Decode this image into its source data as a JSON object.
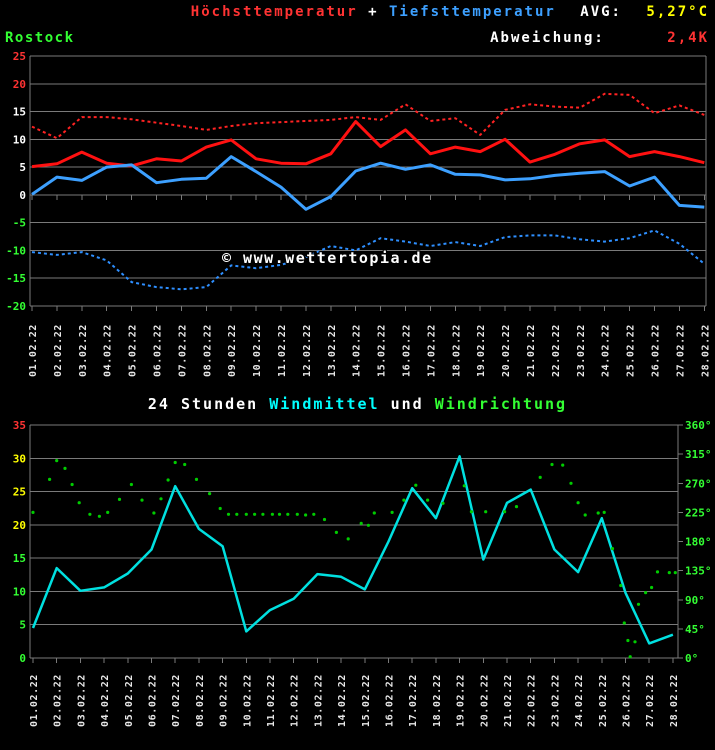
{
  "header": {
    "station": "Rostock",
    "title_max": "Höchsttemperatur",
    "title_plus": "+",
    "title_min": "Tiefsttemperatur",
    "avg_label": "AVG:",
    "avg_value": "5,27°C",
    "dev_label": "Abweichung:",
    "dev_value": "2,4K"
  },
  "watermark": "© www.wettertopia.de",
  "colors": {
    "background": "#000000",
    "red": "#ff2222",
    "blue_solid": "#3da0ff",
    "blue_dashed": "#2e8fff",
    "yellow": "#ffff00",
    "green": "#33ff33",
    "cyan_line": "#00e0e0",
    "cyan_label": "#00ffff",
    "white": "#ffffff",
    "grid": "#7a7a7a",
    "dot_green": "#00cc00",
    "date_label": "#e8e8e8"
  },
  "dates": [
    "01.02.22",
    "02.02.22",
    "03.02.22",
    "04.02.22",
    "05.02.22",
    "06.02.22",
    "07.02.22",
    "08.02.22",
    "09.02.22",
    "10.02.22",
    "11.02.22",
    "12.02.22",
    "13.02.22",
    "14.02.22",
    "15.02.22",
    "16.02.22",
    "17.02.22",
    "18.02.22",
    "19.02.22",
    "20.02.22",
    "21.02.22",
    "22.02.22",
    "23.02.22",
    "24.02.22",
    "25.02.22",
    "26.02.22",
    "27.02.22",
    "28.02.22"
  ],
  "chart_data": [
    {
      "type": "line",
      "title": "Höchsttemperatur + Tiefsttemperatur",
      "ylabel": "°C",
      "ylim": [
        -20,
        25
      ],
      "grid": true,
      "y_ticks": [
        {
          "label": "25",
          "color": "#ff3333"
        },
        {
          "label": "20",
          "color": "#ff3333"
        },
        {
          "label": "15",
          "color": "#ffffff"
        },
        {
          "label": "10",
          "color": "#ffffff"
        },
        {
          "label": "5",
          "color": "#ffffff"
        },
        {
          "label": "0",
          "color": "#ffffff"
        },
        {
          "label": "-5",
          "color": "#33ff33"
        },
        {
          "label": "-10",
          "color": "#33ff33"
        },
        {
          "label": "-15",
          "color": "#33ff33"
        },
        {
          "label": "-20",
          "color": "#33ff33"
        }
      ],
      "series": [
        {
          "name": "max-dashed",
          "style": "dashed",
          "color": "#ff2222",
          "width": 2,
          "values": [
            12.3,
            10.2,
            14.0,
            14.0,
            13.6,
            13.0,
            12.4,
            11.7,
            12.4,
            12.9,
            13.1,
            13.3,
            13.5,
            14.0,
            13.5,
            16.3,
            13.3,
            13.8,
            10.8,
            15.3,
            16.3,
            15.9,
            15.7,
            18.2,
            18.0,
            14.7,
            16.1,
            14.4
          ]
        },
        {
          "name": "min-dashed",
          "style": "dashed",
          "color": "#2e8fff",
          "width": 2,
          "values": [
            -10.3,
            -10.8,
            -10.3,
            -11.8,
            -15.7,
            -16.6,
            -17.0,
            -16.6,
            -12.7,
            -13.2,
            -12.6,
            -11.2,
            -9.2,
            -10.0,
            -7.8,
            -8.4,
            -9.2,
            -8.5,
            -9.2,
            -7.6,
            -7.3,
            -7.3,
            -8.0,
            -8.4,
            -7.8,
            -6.4,
            -8.8,
            -12.4
          ]
        },
        {
          "name": "hoechsttemperatur",
          "style": "solid",
          "color": "#ff1111",
          "width": 3,
          "values": [
            5.1,
            5.6,
            7.7,
            5.7,
            5.2,
            6.5,
            6.1,
            8.6,
            9.9,
            6.5,
            5.7,
            5.6,
            7.4,
            13.2,
            8.7,
            11.7,
            7.4,
            8.6,
            7.8,
            10.0,
            5.9,
            7.3,
            9.2,
            9.9,
            6.9,
            7.8,
            6.9,
            5.8
          ]
        },
        {
          "name": "tiefsttemperatur",
          "style": "solid",
          "color": "#3da0ff",
          "width": 3,
          "values": [
            0.1,
            3.2,
            2.6,
            5.0,
            5.4,
            2.2,
            2.8,
            3.0,
            6.9,
            4.2,
            1.4,
            -2.6,
            -0.3,
            4.3,
            5.7,
            4.6,
            5.4,
            3.7,
            3.6,
            2.7,
            2.9,
            3.5,
            3.9,
            4.2,
            1.6,
            3.2,
            -1.9,
            -2.2
          ]
        }
      ]
    },
    {
      "type": "line+scatter",
      "title_parts": [
        {
          "text": "24 Stunden ",
          "color": "#ffffff"
        },
        {
          "text": "Windmittel",
          "color": "#00ffff"
        },
        {
          "text": " und ",
          "color": "#ffffff"
        },
        {
          "text": "Windrichtung",
          "color": "#33ff33"
        }
      ],
      "ylim_left": [
        0,
        35
      ],
      "ylim_right": [
        0,
        360
      ],
      "grid": true,
      "y_ticks_left": [
        {
          "label": "35",
          "color": "#ff3333"
        },
        {
          "label": "30",
          "color": "#ffff00"
        },
        {
          "label": "25",
          "color": "#ffff00"
        },
        {
          "label": "20",
          "color": "#ffff00"
        },
        {
          "label": "15",
          "color": "#33ff33"
        },
        {
          "label": "10",
          "color": "#33ff33"
        },
        {
          "label": "5",
          "color": "#33ff33"
        },
        {
          "label": "0",
          "color": "#33ff33"
        }
      ],
      "y_ticks_right": [
        {
          "label": "360°",
          "color": "#33ff33"
        },
        {
          "label": "315°",
          "color": "#33ff33"
        },
        {
          "label": "270°",
          "color": "#33ff33"
        },
        {
          "label": "225°",
          "color": "#33ff33"
        },
        {
          "label": "180°",
          "color": "#33ff33"
        },
        {
          "label": "135°",
          "color": "#33ff33"
        },
        {
          "label": "90°",
          "color": "#33ff33"
        },
        {
          "label": "45°",
          "color": "#33ff33"
        },
        {
          "label": "0°",
          "color": "#33ff33"
        }
      ],
      "series": [
        {
          "name": "windmittel",
          "style": "solid",
          "color": "#00e0e0",
          "width": 2.5,
          "values": [
            4.5,
            13.5,
            10.1,
            10.6,
            12.7,
            16.3,
            25.8,
            19.4,
            16.8,
            4.0,
            7.2,
            8.9,
            12.6,
            12.2,
            10.3,
            17.5,
            25.5,
            21.0,
            30.3,
            14.8,
            23.3,
            25.3,
            16.3,
            12.9,
            21.0,
            9.8,
            2.2,
            3.5
          ]
        }
      ],
      "scatter": {
        "name": "windrichtung",
        "color": "#00cc00",
        "points": [
          [
            1.0,
            225
          ],
          [
            1.7,
            276
          ],
          [
            2.0,
            305
          ],
          [
            2.35,
            293
          ],
          [
            2.65,
            268
          ],
          [
            2.95,
            240
          ],
          [
            3.4,
            222
          ],
          [
            3.8,
            219
          ],
          [
            4.15,
            225
          ],
          [
            4.65,
            245
          ],
          [
            5.15,
            268
          ],
          [
            5.6,
            244
          ],
          [
            6.1,
            224
          ],
          [
            6.4,
            246
          ],
          [
            6.7,
            275
          ],
          [
            7.0,
            302
          ],
          [
            7.4,
            299
          ],
          [
            7.9,
            276
          ],
          [
            8.45,
            254
          ],
          [
            8.9,
            231
          ],
          [
            9.25,
            222
          ],
          [
            9.6,
            222
          ],
          [
            10.0,
            222
          ],
          [
            10.35,
            222
          ],
          [
            10.7,
            222
          ],
          [
            11.1,
            222
          ],
          [
            11.4,
            222
          ],
          [
            11.75,
            222
          ],
          [
            12.15,
            222
          ],
          [
            12.5,
            221
          ],
          [
            12.85,
            222
          ],
          [
            13.3,
            214
          ],
          [
            13.8,
            194
          ],
          [
            14.3,
            184
          ],
          [
            14.85,
            208
          ],
          [
            15.15,
            205
          ],
          [
            15.4,
            224
          ],
          [
            16.15,
            225
          ],
          [
            16.65,
            244
          ],
          [
            17.15,
            267
          ],
          [
            17.65,
            244
          ],
          [
            18.3,
            239
          ],
          [
            19.2,
            266
          ],
          [
            19.5,
            226
          ],
          [
            20.1,
            226
          ],
          [
            20.9,
            226
          ],
          [
            21.4,
            234
          ],
          [
            22.4,
            279
          ],
          [
            22.9,
            299
          ],
          [
            23.35,
            298
          ],
          [
            23.7,
            270
          ],
          [
            24.0,
            240
          ],
          [
            24.3,
            221
          ],
          [
            24.85,
            224
          ],
          [
            25.1,
            225
          ],
          [
            25.45,
            169
          ],
          [
            25.8,
            112
          ],
          [
            25.95,
            54
          ],
          [
            26.1,
            27
          ],
          [
            26.2,
            2
          ],
          [
            26.4,
            25
          ],
          [
            26.55,
            83
          ],
          [
            26.85,
            101
          ],
          [
            27.1,
            109
          ],
          [
            27.35,
            133
          ],
          [
            27.85,
            132
          ],
          [
            28.1,
            132
          ]
        ]
      }
    }
  ]
}
